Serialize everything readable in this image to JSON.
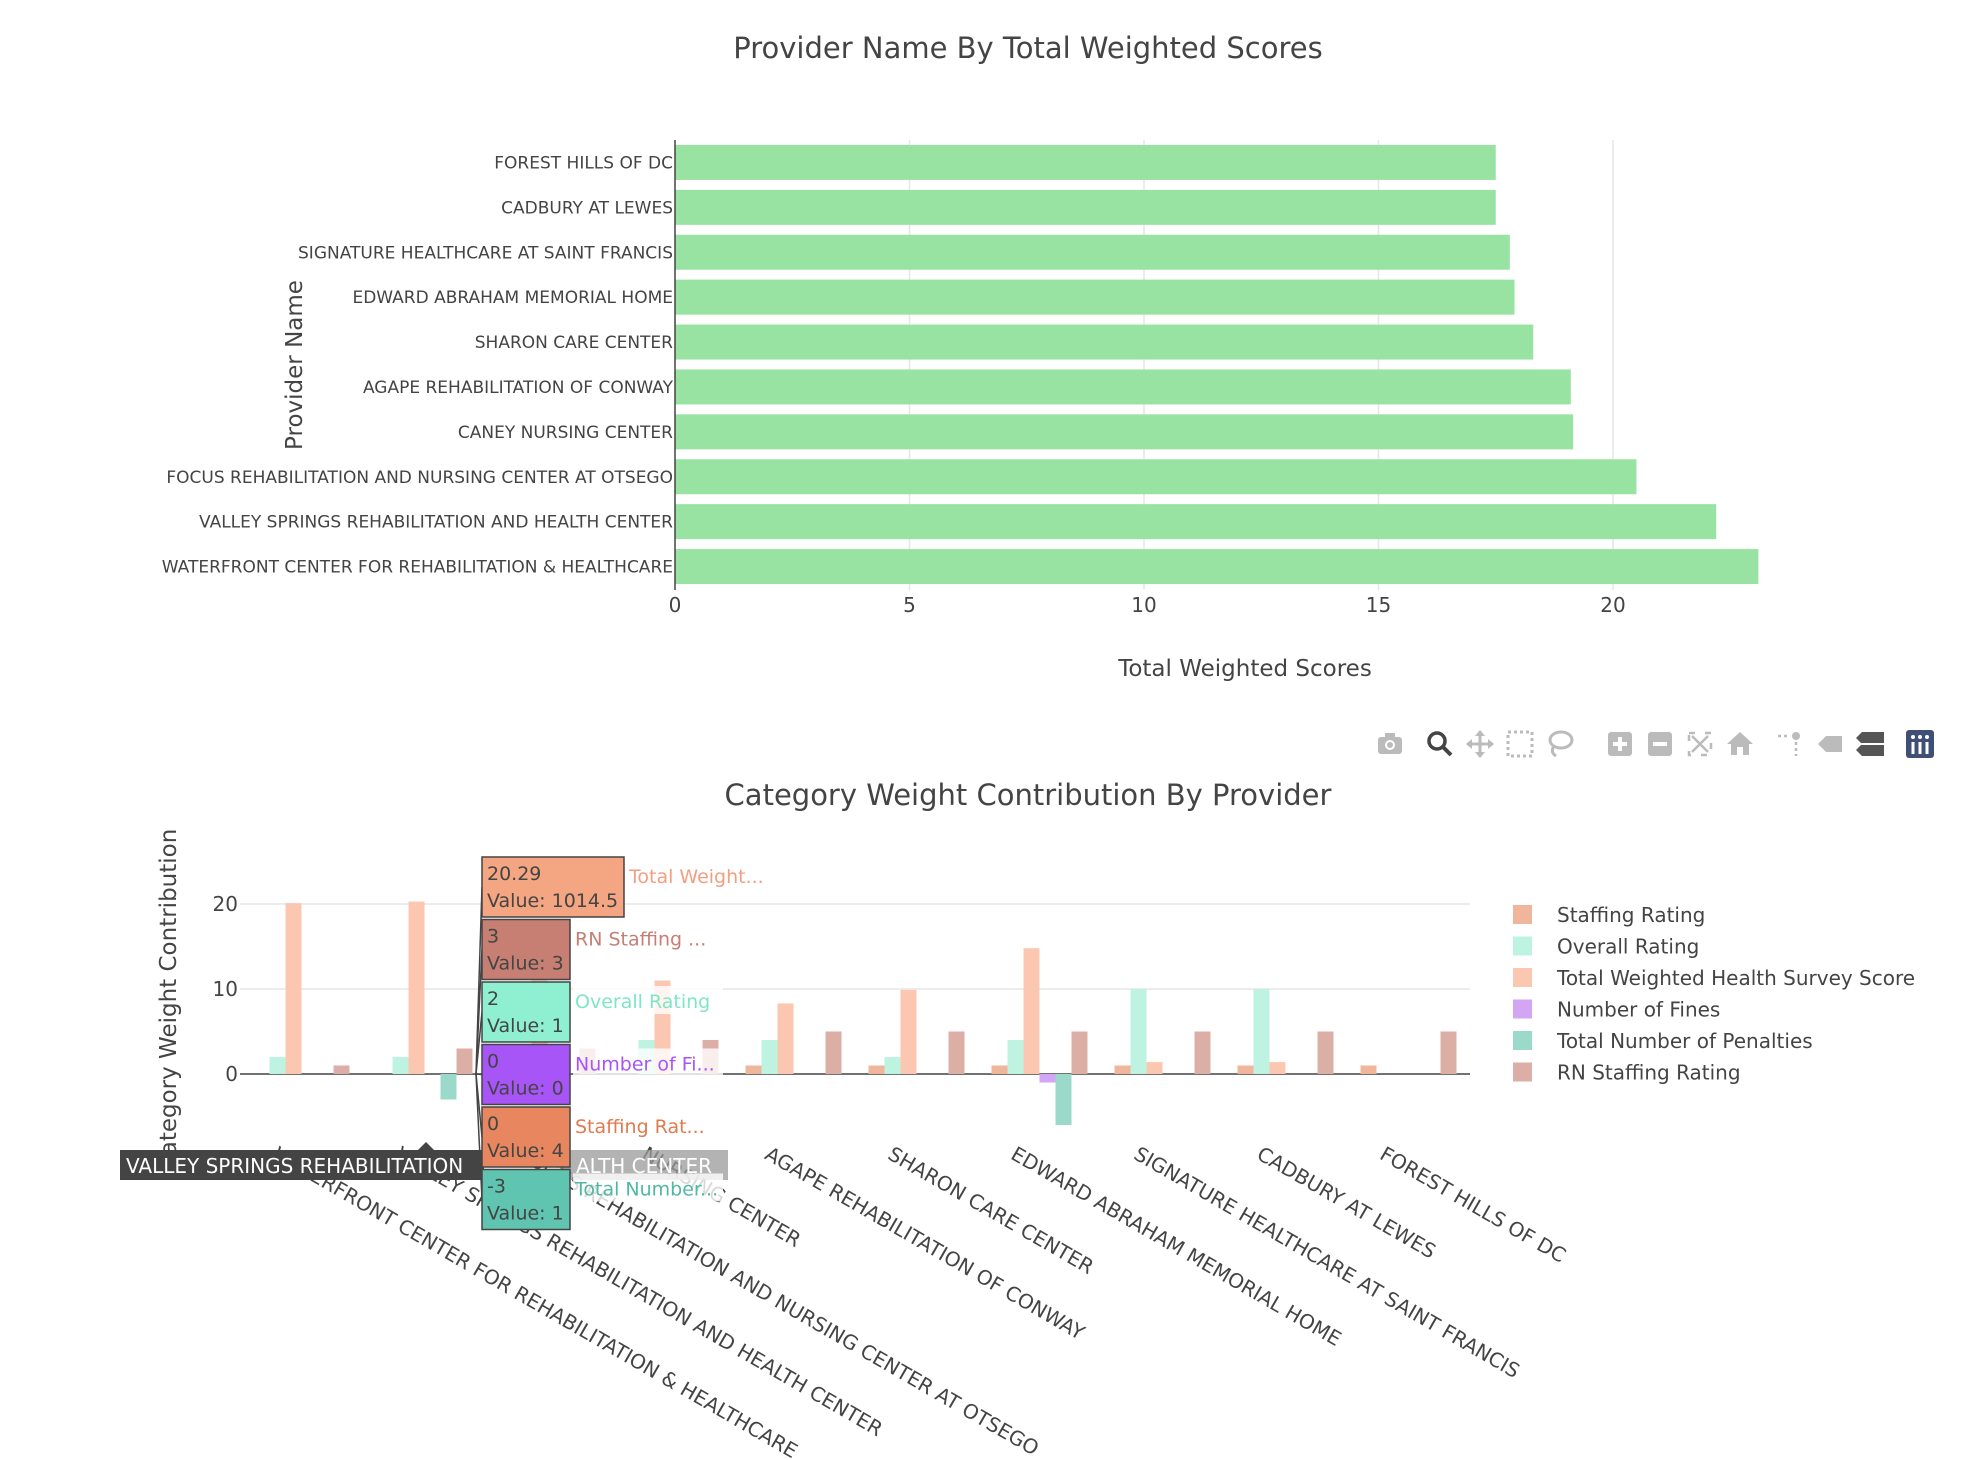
{
  "chart_data": [
    {
      "type": "bar",
      "orientation": "horizontal",
      "title": "Provider Name By Total Weighted Scores",
      "xlabel": "Total Weighted Scores",
      "ylabel": "Provider Name",
      "xlim": [
        0,
        23.5
      ],
      "xticks": [
        0,
        5,
        10,
        15,
        20
      ],
      "grid": true,
      "bar_color": "#98e3a2",
      "categories": [
        "WATERFRONT CENTER FOR REHABILITATION & HEALTHCARE",
        "VALLEY SPRINGS REHABILITATION AND HEALTH CENTER",
        "FOCUS REHABILITATION AND NURSING CENTER AT OTSEGO",
        "CANEY NURSING CENTER",
        "AGAPE REHABILITATION OF CONWAY",
        "SHARON CARE CENTER",
        "EDWARD ABRAHAM MEMORIAL HOME",
        "SIGNATURE HEALTHCARE AT SAINT FRANCIS",
        "CADBURY AT LEWES",
        "FOREST HILLS OF DC"
      ],
      "values": [
        23.1,
        22.2,
        20.5,
        19.15,
        19.1,
        18.3,
        17.9,
        17.8,
        17.5,
        17.5
      ]
    },
    {
      "type": "bar",
      "orientation": "vertical",
      "barmode": "group",
      "title": "Category Weight Contribution By Provider",
      "ylabel": "Category Weight Contribution",
      "ylim": [
        -7,
        24
      ],
      "yticks": [
        0,
        10,
        20
      ],
      "legend_position": "right",
      "categories": [
        "WATERFRONT CENTER FOR REHABILITATION & HEALTHCARE",
        "VALLEY SPRINGS REHABILITATION AND HEALTH CENTER",
        "FOCUS REHABILITATION AND NURSING CENTER AT OTSEGO",
        "CANEY NURSING CENTER",
        "AGAPE REHABILITATION OF CONWAY",
        "SHARON CARE CENTER",
        "EDWARD ABRAHAM MEMORIAL HOME",
        "SIGNATURE HEALTHCARE AT SAINT FRANCIS",
        "CADBURY AT LEWES",
        "FOREST HILLS OF DC"
      ],
      "visible_category_labels": [
        "WATERFRONT CENTER FOR REHABILITATION & HEALTHCARE",
        "VALLEY SPRINGS REHABILITATION AND HEALTH CENTER",
        "FOCUS REHABILITATION AND NURSING CENTER AT OTSEGO",
        "NURSING CENTER",
        "AGAPE REHABILITATION OF CONWAY",
        "SHARON CARE CENTER",
        "EDWARD ABRAHAM MEMORIAL HOME",
        "SIGNATURE HEALTHCARE AT SAINT FRANCIS",
        "CADBURY AT LEWES",
        "FOREST HILLS OF DC"
      ],
      "series": [
        {
          "name": "Staffing Rating",
          "color": "#f0b69c",
          "values": [
            0,
            0,
            0,
            0,
            1,
            1,
            1,
            1,
            1,
            1
          ]
        },
        {
          "name": "Overall Rating",
          "color": "#bff3e1",
          "values": [
            2,
            2,
            2,
            4,
            4,
            2,
            4,
            10,
            10,
            0
          ]
        },
        {
          "name": "Total Weighted Health Survey Score",
          "color": "#fcc7b0",
          "values": [
            20.1,
            20.29,
            11,
            11,
            8.3,
            9.9,
            14.8,
            1.4,
            1.4,
            0
          ]
        },
        {
          "name": "Number of Fines",
          "color": "#d2a6f5",
          "values": [
            0,
            0,
            0,
            0,
            0,
            0,
            -1,
            0,
            0,
            0
          ]
        },
        {
          "name": "Total Number of Penalties",
          "color": "#9bdacb",
          "values": [
            0,
            -3,
            0,
            0,
            0,
            0,
            -6,
            0,
            0,
            0
          ]
        },
        {
          "name": "RN Staffing Rating",
          "color": "#dcafa6",
          "values": [
            1,
            3,
            3,
            4,
            5,
            5,
            5,
            5,
            5,
            5
          ]
        }
      ]
    }
  ],
  "hover": {
    "category_label": "VALLEY SPRINGS REHABILITATION AND HEALTH CENTER",
    "category_label_visible_left": "VALLEY SPRINGS REHABILITATION",
    "category_label_visible_right": "ALTH CENTER",
    "items": [
      {
        "line1": "20.29",
        "line2": "Value: 1014.5",
        "name": "Total Weight...",
        "bg": "#f4a582",
        "name_color": "#f0a080"
      },
      {
        "line1": "3",
        "line2": "Value: 3",
        "name": "RN Staffing ...",
        "bg": "#c77f74",
        "name_color": "#c77f74"
      },
      {
        "line1": "2",
        "line2": "Value: 1",
        "name": "Overall Rating",
        "bg": "#8ef0d0",
        "name_color": "#7ee6c4"
      },
      {
        "line1": "0",
        "line2": "Value: 0",
        "name": "Number of Fi...",
        "bg": "#a855f7",
        "name_color": "#a855f7"
      },
      {
        "line1": "0",
        "line2": "Value: 4",
        "name": "Staffing Rat...",
        "bg": "#e8875f",
        "name_color": "#e07a50"
      },
      {
        "line1": "-3",
        "line2": "Value: 1",
        "name": "Total Number...",
        "bg": "#5fc4b0",
        "name_color": "#4fb8a4"
      }
    ]
  },
  "modebar": {
    "buttons": [
      "camera-icon",
      "zoom-icon",
      "pan-icon",
      "box-select-icon",
      "lasso-icon",
      "zoom-in-icon",
      "zoom-out-icon",
      "autoscale-icon",
      "reset-axes-icon",
      "spike-lines-icon",
      "hover-closest-icon",
      "hover-compare-icon",
      "plotly-logo-icon"
    ]
  }
}
